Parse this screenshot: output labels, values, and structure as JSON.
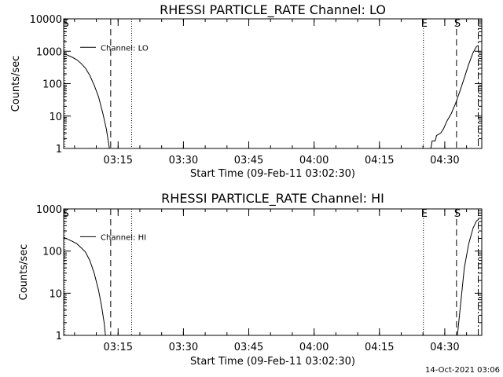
{
  "footer_date": "14-Oct-2021 03:06",
  "chart_data": [
    {
      "type": "line",
      "title": "RHESSI PARTICLE_RATE Channel: LO",
      "xlabel": "Start Time (09-Feb-11 03:02:30)",
      "ylabel": "Counts/sec",
      "yscale": "log",
      "ylim": [
        1,
        10000
      ],
      "xlim_minutes": [
        0,
        96
      ],
      "x_ticks": [
        {
          "min": 12.5,
          "label": "03:15"
        },
        {
          "min": 27.5,
          "label": "03:30"
        },
        {
          "min": 42.5,
          "label": "03:45"
        },
        {
          "min": 57.5,
          "label": "04:00"
        },
        {
          "min": 72.5,
          "label": "04:15"
        },
        {
          "min": 87.5,
          "label": "04:30"
        }
      ],
      "y_ticks": [
        {
          "value": 1,
          "label": "1"
        },
        {
          "value": 10,
          "label": "10"
        },
        {
          "value": 100,
          "label": "100"
        },
        {
          "value": 1000,
          "label": "1000"
        },
        {
          "value": 10000,
          "label": "10000"
        }
      ],
      "legend": {
        "label": "Channel: LO",
        "placement": "top-left"
      },
      "markers": [
        {
          "min": 0.3,
          "label": "S",
          "style": "dotted"
        },
        {
          "min": 10.8,
          "label": "",
          "style": "dashed"
        },
        {
          "min": 15.6,
          "label": "",
          "style": "dotted"
        },
        {
          "min": 82.6,
          "label": "E",
          "style": "dotted"
        },
        {
          "min": 90.2,
          "label": "S",
          "style": "dashed"
        },
        {
          "min": 95.2,
          "label": "",
          "style": "dashdot"
        }
      ],
      "series": [
        {
          "name": "Channel: LO",
          "segments": [
            [
              [
                0,
                850
              ],
              [
                1,
                750
              ],
              [
                2,
                650
              ],
              [
                3,
                550
              ],
              [
                4,
                420
              ],
              [
                5,
                300
              ],
              [
                6,
                180
              ],
              [
                7,
                90
              ],
              [
                8,
                40
              ],
              [
                9,
                12
              ],
              [
                9.8,
                4
              ],
              [
                10.5,
                1
              ]
            ],
            [
              [
                83.3,
                1
              ],
              [
                84.3,
                1
              ],
              [
                84.6,
                1.7
              ],
              [
                85.3,
                1.7
              ],
              [
                85.6,
                2.5
              ],
              [
                86.6,
                3
              ],
              [
                87.2,
                4
              ],
              [
                88,
                7
              ],
              [
                89,
                12
              ],
              [
                90,
                25
              ],
              [
                91,
                60
              ],
              [
                92,
                150
              ],
              [
                93,
                400
              ],
              [
                94,
                900
              ],
              [
                94.8,
                1400
              ],
              [
                95.2,
                1500
              ]
            ]
          ]
        }
      ]
    },
    {
      "type": "line",
      "title": "RHESSI PARTICLE_RATE Channel: HI",
      "xlabel": "Start Time (09-Feb-11 03:02:30)",
      "ylabel": "Counts/sec",
      "yscale": "log",
      "ylim": [
        1,
        1000
      ],
      "xlim_minutes": [
        0,
        96
      ],
      "x_ticks": [
        {
          "min": 12.5,
          "label": "03:15"
        },
        {
          "min": 27.5,
          "label": "03:30"
        },
        {
          "min": 42.5,
          "label": "03:45"
        },
        {
          "min": 57.5,
          "label": "04:00"
        },
        {
          "min": 72.5,
          "label": "04:15"
        },
        {
          "min": 87.5,
          "label": "04:30"
        }
      ],
      "y_ticks": [
        {
          "value": 1,
          "label": "1"
        },
        {
          "value": 10,
          "label": "10"
        },
        {
          "value": 100,
          "label": "100"
        },
        {
          "value": 1000,
          "label": "1000"
        }
      ],
      "legend": {
        "label": "Channel: HI",
        "placement": "top-left"
      },
      "markers": [
        {
          "min": 0.3,
          "label": "S",
          "style": "dotted"
        },
        {
          "min": 10.8,
          "label": "",
          "style": "dashed"
        },
        {
          "min": 15.6,
          "label": "",
          "style": "dotted"
        },
        {
          "min": 82.6,
          "label": "E",
          "style": "dotted"
        },
        {
          "min": 90.2,
          "label": "S",
          "style": "dashed"
        },
        {
          "min": 95.2,
          "label": "",
          "style": "dashdot"
        }
      ],
      "series": [
        {
          "name": "Channel: HI",
          "segments": [
            [
              [
                0,
                210
              ],
              [
                1,
                190
              ],
              [
                2,
                170
              ],
              [
                3,
                150
              ],
              [
                4,
                120
              ],
              [
                5,
                95
              ],
              [
                6,
                60
              ],
              [
                7,
                30
              ],
              [
                8,
                12
              ],
              [
                8.7,
                5
              ],
              [
                9.3,
                2
              ],
              [
                9.6,
                1
              ]
            ],
            [
              [
                90.4,
                1
              ],
              [
                91,
                4
              ],
              [
                92,
                40
              ],
              [
                93,
                150
              ],
              [
                94,
                350
              ],
              [
                94.8,
                520
              ],
              [
                95.2,
                560
              ]
            ]
          ]
        }
      ]
    }
  ]
}
